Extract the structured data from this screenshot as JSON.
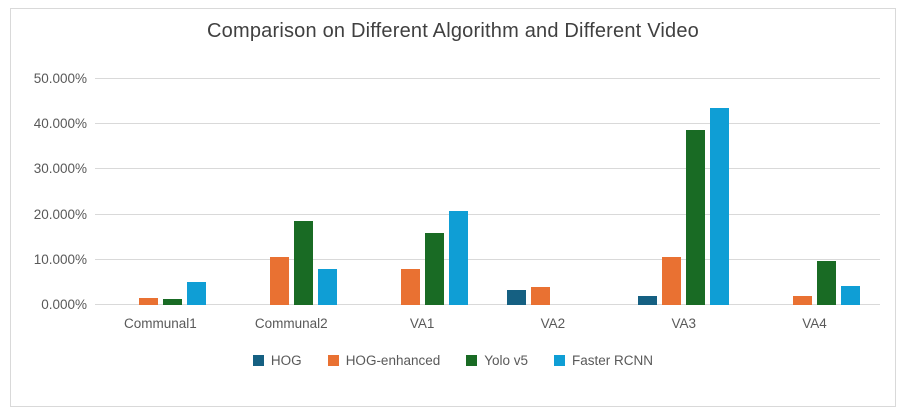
{
  "chart_data": {
    "type": "bar",
    "title": "Comparison on Different Algorithm and Different Video",
    "categories": [
      "Communal1",
      "Communal2",
      "VA1",
      "VA2",
      "VA3",
      "VA4"
    ],
    "series": [
      {
        "name": "HOG",
        "color": "#156082",
        "values": [
          0,
          0,
          0,
          3.3,
          2.0,
          0
        ]
      },
      {
        "name": "HOG-enhanced",
        "color": "#E97132",
        "values": [
          1.6,
          10.6,
          7.9,
          3.9,
          10.7,
          2.1
        ]
      },
      {
        "name": "Yolo v5",
        "color": "#196B24",
        "values": [
          1.3,
          18.6,
          15.9,
          0,
          38.8,
          9.7
        ]
      },
      {
        "name": "Faster RCNN",
        "color": "#0F9ED5",
        "values": [
          5.2,
          7.9,
          20.9,
          0,
          43.6,
          4.3
        ]
      }
    ],
    "xlabel": "",
    "ylabel": "",
    "ylim": [
      0,
      50
    ],
    "ytick_step": 10,
    "ytick_labels": [
      "0.000%",
      "10.000%",
      "20.000%",
      "30.000%",
      "40.000%",
      "50.000%"
    ],
    "grid": true,
    "legend_position": "bottom",
    "legend_labels": [
      "HOG",
      "HOG-enhanced",
      "Yolo v5",
      "Faster RCNN"
    ]
  },
  "style": {
    "grid_color": "#D9D9D9",
    "axis_text_color": "#595959",
    "title_color": "#404040",
    "card_border_color": "#D9D9D9",
    "background_color": "#FFFFFF"
  }
}
